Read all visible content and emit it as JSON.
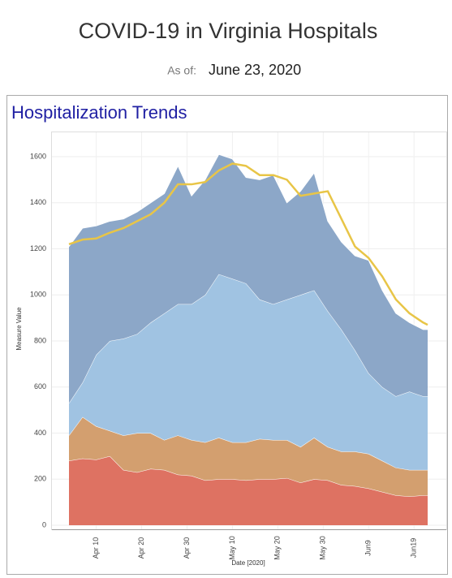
{
  "header": {
    "title": "COVID-19 in Virginia Hospitals",
    "as_of_label": "As of:",
    "as_of_date": "June 23, 2020"
  },
  "chart_data": {
    "type": "stacked_area",
    "title": "Hospitalization Trends",
    "x_label": "Date [2020]",
    "y_label": "Measure Value",
    "x": [
      "Apr 4",
      "Apr 7",
      "Apr 10",
      "Apr 13",
      "Apr 16",
      "Apr 19",
      "Apr 22",
      "Apr 25",
      "Apr 28",
      "May 1",
      "May 4",
      "May 7",
      "May 10",
      "May 13",
      "May 16",
      "May 19",
      "May 22",
      "May 25",
      "May 28",
      "May 31",
      "Jun 3",
      "Jun 6",
      "Jun 9",
      "Jun 12",
      "Jun 15",
      "Jun 18",
      "Jun 21",
      "Jun 22"
    ],
    "series": [
      {
        "color": "#de7262",
        "values": [
          280,
          290,
          285,
          300,
          240,
          230,
          245,
          240,
          220,
          215,
          195,
          200,
          200,
          195,
          200,
          200,
          205,
          185,
          200,
          195,
          175,
          170,
          160,
          145,
          130,
          125,
          130,
          130
        ]
      },
      {
        "color": "#d39f6f",
        "values": [
          110,
          180,
          145,
          110,
          150,
          170,
          155,
          130,
          170,
          155,
          165,
          180,
          160,
          165,
          175,
          170,
          165,
          155,
          180,
          145,
          145,
          150,
          150,
          135,
          120,
          115,
          110,
          110
        ]
      },
      {
        "color": "#a0c3e2",
        "values": [
          140,
          150,
          310,
          390,
          420,
          430,
          480,
          550,
          570,
          590,
          640,
          710,
          710,
          690,
          605,
          590,
          610,
          660,
          640,
          590,
          530,
          440,
          350,
          320,
          310,
          340,
          320,
          320
        ]
      },
      {
        "color": "#8ca7c8",
        "values": [
          680,
          670,
          560,
          520,
          520,
          530,
          520,
          520,
          600,
          470,
          500,
          520,
          520,
          460,
          520,
          560,
          420,
          450,
          510,
          390,
          380,
          410,
          490,
          420,
          360,
          300,
          290,
          290
        ]
      }
    ],
    "line": {
      "color": "#e8c547",
      "values": [
        1220,
        1240,
        1245,
        1270,
        1290,
        1320,
        1350,
        1400,
        1480,
        1480,
        1490,
        1540,
        1570,
        1560,
        1520,
        1520,
        1500,
        1430,
        1440,
        1450,
        1330,
        1210,
        1160,
        1080,
        980,
        920,
        880,
        870
      ]
    },
    "ylim": [
      0,
      1600
    ],
    "yticks": [
      0,
      200,
      400,
      600,
      800,
      1000,
      1200,
      1400,
      1600
    ],
    "xlim": [
      "Apr 4",
      "Jun 22"
    ],
    "xticks": [
      "Apr 10",
      "Apr 20",
      "Apr 30",
      "May 10",
      "May 20",
      "May 30",
      {
        "value": "Jun 9",
        "label": "Jun9"
      },
      {
        "value": "Jun 19",
        "label": "Jun19"
      }
    ]
  }
}
